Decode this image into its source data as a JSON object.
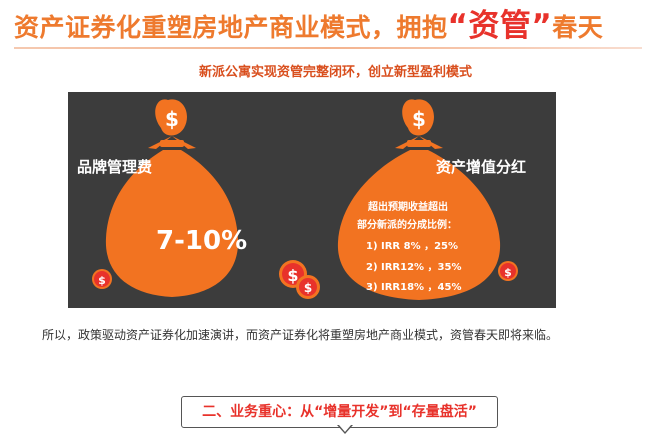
{
  "header": {
    "title_start": "资产证券化重塑房地产商业模式，拥抱",
    "title_quote_open": "“",
    "title_highlight": "资管",
    "title_quote_close": "”",
    "title_end": "春天",
    "subtitle": "新派公寓实现资管完整闭环，创立新型盈利模式"
  },
  "graphic": {
    "left_bag": {
      "label": "品牌管理费",
      "percent": "7-10%",
      "icon": "money-bag-dollar-icon"
    },
    "right_bag": {
      "label": "资产增值分红",
      "line1": "超出预期收益超出",
      "line2": "部分新派的分成比例：",
      "rows": [
        "1) IRR 8% ，25%",
        "2) IRR12% ，35%",
        "3) IRR18% ，45%"
      ],
      "icon": "money-bag-dollar-icon"
    },
    "colors": {
      "bag": "#f27321",
      "panel": "#3c3c3c",
      "accent": "#e8322b"
    }
  },
  "body": {
    "paragraph": "所以，政策驱动资产证券化加速演讲，而资产证券化将重塑房地产商业模式，资管春天即将来临。"
  },
  "section": {
    "title": "二、业务重心：从“增量开发”到“存量盘活”"
  }
}
